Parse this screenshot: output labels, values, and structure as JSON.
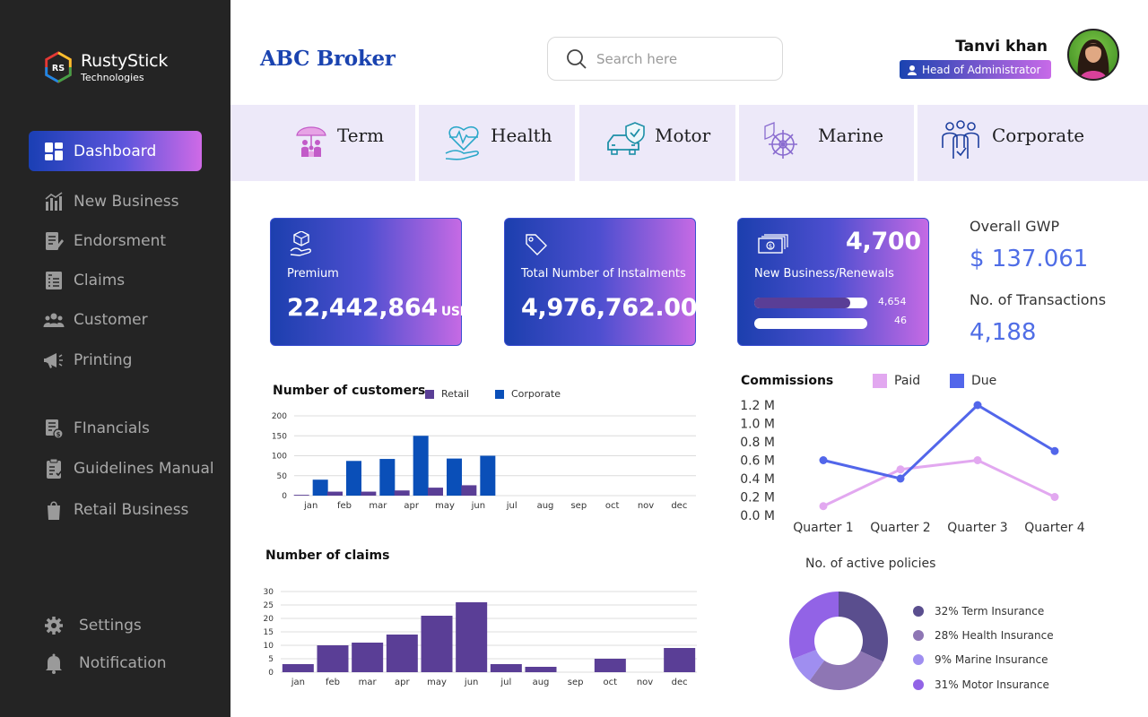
{
  "brand": {
    "name": "RustyStick",
    "sub": "Technologies"
  },
  "sidebar": {
    "items": [
      {
        "label": "Dashboard",
        "icon": "dashboard-icon"
      },
      {
        "label": "New Business",
        "icon": "chart-bars-icon"
      },
      {
        "label": "Endorsment",
        "icon": "document-edit-icon"
      },
      {
        "label": "Claims",
        "icon": "claims-icon"
      },
      {
        "label": "Customer",
        "icon": "users-icon"
      },
      {
        "label": "Printing",
        "icon": "megaphone-icon"
      },
      {
        "label": "FInancials",
        "icon": "finance-doc-icon"
      },
      {
        "label": "Guidelines Manual",
        "icon": "clipboard-check-icon"
      },
      {
        "label": "Retail Business",
        "icon": "shopping-bag-icon"
      },
      {
        "label": "Settings",
        "icon": "gear-icon"
      },
      {
        "label": "Notification",
        "icon": "bell-icon"
      }
    ]
  },
  "header": {
    "title": "ABC Broker",
    "search_placeholder": "Search here",
    "user_name": "Tanvi khan",
    "user_role": "Head of Administrator"
  },
  "tabs": [
    {
      "label": "Term",
      "icon": "family-umbrella-icon"
    },
    {
      "label": "Health",
      "icon": "heart-hand-icon"
    },
    {
      "label": "Motor",
      "icon": "car-shield-icon"
    },
    {
      "label": "Marine",
      "icon": "ship-wheel-icon"
    },
    {
      "label": "Corporate",
      "icon": "team-icon"
    }
  ],
  "cards": {
    "premium": {
      "label": "Premium",
      "value": "22,442,864",
      "unit": "USD"
    },
    "instalments": {
      "label": "Total Number of Instalments",
      "value": "4,976,762.00"
    },
    "new_business": {
      "label": "New Business/Renewals",
      "value": "4,700",
      "bars": [
        {
          "value": "4,654",
          "fraction": 0.85
        },
        {
          "value": "46",
          "fraction": 0.0
        }
      ]
    }
  },
  "kpis": {
    "gwp_label": "Overall GWP",
    "gwp_value": "$ 137.061",
    "tx_label": "No. of Transactions",
    "tx_value": "4,188"
  },
  "colors": {
    "retail": "#5a3e96",
    "corporate": "#0a4fb8",
    "paid": "#e2a8f0",
    "due": "#5266ea",
    "claims": "#5a3e96"
  },
  "chart_data": [
    {
      "type": "bar",
      "title": "Number of customers",
      "categories": [
        "jan",
        "feb",
        "mar",
        "apr",
        "may",
        "jun",
        "jul",
        "aug",
        "sep",
        "oct",
        "nov",
        "dec"
      ],
      "series": [
        {
          "name": "Retail",
          "values": [
            2,
            10,
            10,
            13,
            20,
            26,
            null,
            null,
            null,
            null,
            null,
            null
          ]
        },
        {
          "name": "Corporate",
          "values": [
            40,
            87,
            92,
            150,
            93,
            100,
            null,
            null,
            null,
            null,
            null,
            null
          ]
        }
      ],
      "ylim": [
        0,
        200
      ],
      "yticks": [
        0,
        50,
        100,
        150,
        200
      ],
      "grid": true
    },
    {
      "type": "bar",
      "title": "Number of claims",
      "categories": [
        "jan",
        "feb",
        "mar",
        "apr",
        "may",
        "jun",
        "jul",
        "aug",
        "sep",
        "oct",
        "nov",
        "dec"
      ],
      "series": [
        {
          "values": [
            3,
            10,
            11,
            14,
            21,
            26,
            3,
            2,
            0,
            5,
            0,
            9
          ]
        }
      ],
      "ylim": [
        0,
        30
      ],
      "yticks": [
        0,
        5,
        10,
        15,
        20,
        25,
        30
      ],
      "grid": true
    },
    {
      "type": "line",
      "title": "Commissions",
      "categories": [
        "Quarter 1",
        "Quarter 2",
        "Quarter 3",
        "Quarter 4"
      ],
      "series": [
        {
          "name": "Paid",
          "values": [
            0.1,
            0.5,
            0.6,
            0.2
          ]
        },
        {
          "name": "Due",
          "values": [
            0.6,
            0.4,
            1.2,
            0.7
          ]
        }
      ],
      "ylim": [
        0,
        1.2
      ],
      "ytick_labels": [
        "0.0 M",
        "0.2 M",
        "0.4 M",
        "0.6 M",
        "0.8 M",
        "1.0 M",
        "1.2 M"
      ],
      "legend": "top"
    },
    {
      "type": "pie",
      "title": "No. of active policies",
      "slices": [
        {
          "label": "32% Term Insurance",
          "value": 32,
          "color": "#5a4e8e"
        },
        {
          "label": "28% Health Insurance",
          "value": 28,
          "color": "#8e76b4"
        },
        {
          "label": "9% Marine Insurance",
          "value": 9,
          "color": "#9f8ef0"
        },
        {
          "label": "31% Motor Insurance",
          "value": 31,
          "color": "#9263e6"
        }
      ],
      "legend": "right"
    }
  ]
}
